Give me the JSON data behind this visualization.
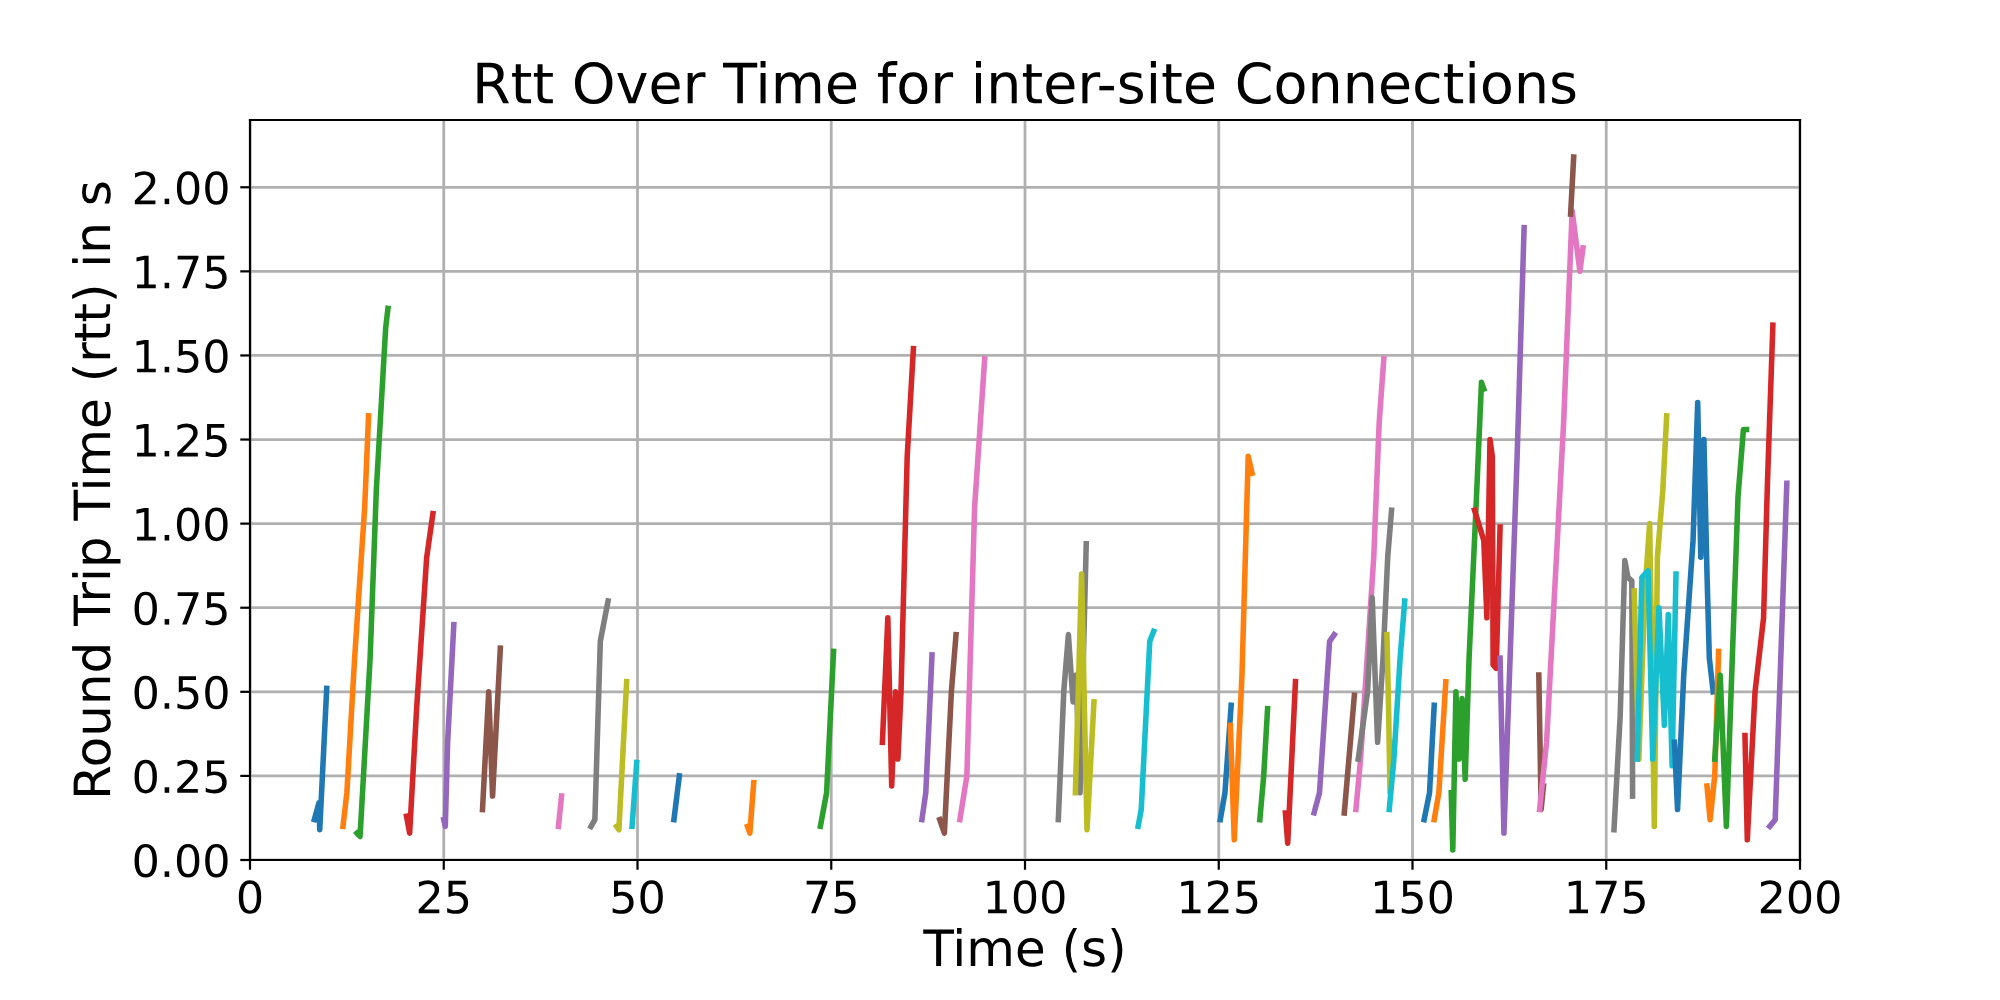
{
  "chart_data": {
    "type": "line",
    "title": "Rtt Over Time for inter-site Connections",
    "xlabel": "Time (s)",
    "ylabel": "Round Trip Time (rtt) in s",
    "xlim": [
      0,
      200
    ],
    "ylim": [
      0,
      2.2
    ],
    "xticks": [
      0,
      25,
      50,
      75,
      100,
      125,
      150,
      175,
      200
    ],
    "yticks": [
      {
        "value": 0,
        "label": "0.00"
      },
      {
        "value": 0.25,
        "label": "0.25"
      },
      {
        "value": 0.5,
        "label": "0.50"
      },
      {
        "value": 0.75,
        "label": "0.75"
      },
      {
        "value": 1,
        "label": "1.00"
      },
      {
        "value": 1.25,
        "label": "1.25"
      },
      {
        "value": 1.5,
        "label": "1.50"
      },
      {
        "value": 1.75,
        "label": "1.75"
      },
      {
        "value": 2,
        "label": "2.00"
      }
    ],
    "grid": true,
    "series": [
      {
        "color": "#1f77b4",
        "x": [
          8.3,
          8.9,
          9.0,
          9.9
        ],
        "values": [
          0.12,
          0.17,
          0.09,
          0.51
        ]
      },
      {
        "color": "#ff7f0e",
        "x": [
          12.0,
          12.5,
          13.5,
          14.8,
          15.3
        ],
        "values": [
          0.1,
          0.2,
          0.6,
          1.05,
          1.32
        ]
      },
      {
        "color": "#2ca02c",
        "x": [
          13.8,
          14.2,
          15.5,
          16.3,
          17.5,
          17.8
        ],
        "values": [
          0.08,
          0.07,
          0.6,
          1.1,
          1.58,
          1.64
        ]
      },
      {
        "color": "#d62728",
        "x": [
          20.2,
          20.6,
          21.5,
          22.8,
          23.6
        ],
        "values": [
          0.13,
          0.08,
          0.45,
          0.9,
          1.03
        ]
      },
      {
        "color": "#9467bd",
        "x": [
          25.0,
          25.2,
          25.5,
          26.3
        ],
        "values": [
          0.12,
          0.1,
          0.35,
          0.7
        ]
      },
      {
        "color": "#8c564b",
        "x": [
          30.0,
          30.8,
          31.3,
          32.3
        ],
        "values": [
          0.15,
          0.5,
          0.19,
          0.63
        ]
      },
      {
        "color": "#e377c2",
        "x": [
          39.8,
          40.2
        ],
        "values": [
          0.1,
          0.19
        ]
      },
      {
        "color": "#7f7f7f",
        "x": [
          44.0,
          44.5,
          45.2,
          46.2
        ],
        "values": [
          0.1,
          0.12,
          0.65,
          0.77
        ]
      },
      {
        "color": "#bcbd22",
        "x": [
          47.3,
          47.6,
          48.6
        ],
        "values": [
          0.1,
          0.09,
          0.53
        ]
      },
      {
        "color": "#17becf",
        "x": [
          49.3,
          49.9
        ],
        "values": [
          0.1,
          0.29
        ]
      },
      {
        "color": "#1f77b4",
        "x": [
          54.7,
          55.4
        ],
        "values": [
          0.12,
          0.25
        ]
      },
      {
        "color": "#ff7f0e",
        "x": [
          64.2,
          64.5,
          65.0
        ],
        "values": [
          0.1,
          0.08,
          0.23
        ]
      },
      {
        "color": "#2ca02c",
        "x": [
          73.6,
          74.4,
          75.3
        ],
        "values": [
          0.1,
          0.2,
          0.62
        ]
      },
      {
        "color": "#d62728",
        "x": [
          81.6,
          82.3,
          82.8,
          83.3,
          83.6,
          84.0,
          84.8,
          85.6
        ],
        "values": [
          0.35,
          0.72,
          0.22,
          0.5,
          0.3,
          0.5,
          1.2,
          1.52
        ]
      },
      {
        "color": "#9467bd",
        "x": [
          86.7,
          87.2,
          87.6,
          88.0
        ],
        "values": [
          0.12,
          0.2,
          0.4,
          0.61
        ]
      },
      {
        "color": "#8c564b",
        "x": [
          89.0,
          89.6,
          90.5,
          91.1
        ],
        "values": [
          0.12,
          0.08,
          0.5,
          0.67
        ]
      },
      {
        "color": "#e377c2",
        "x": [
          91.6,
          92.5,
          93.5,
          94.8
        ],
        "values": [
          0.12,
          0.25,
          1.05,
          1.49
        ]
      },
      {
        "color": "#7f7f7f",
        "x": [
          104.3,
          105.0,
          105.6,
          106.2,
          106.6,
          107.1,
          107.9
        ],
        "values": [
          0.12,
          0.5,
          0.67,
          0.47,
          0.55,
          0.2,
          0.94
        ]
      },
      {
        "color": "#bcbd22",
        "x": [
          106.5,
          107.3,
          108.0,
          108.9
        ],
        "values": [
          0.2,
          0.85,
          0.09,
          0.47
        ]
      },
      {
        "color": "#17becf",
        "x": [
          114.6,
          115.0,
          116.1,
          116.6
        ],
        "values": [
          0.1,
          0.15,
          0.65,
          0.68
        ]
      },
      {
        "color": "#1f77b4",
        "x": [
          125.2,
          125.8,
          126.6
        ],
        "values": [
          0.12,
          0.2,
          0.46
        ]
      },
      {
        "color": "#ff7f0e",
        "x": [
          126.5,
          127.0,
          128.0,
          128.8,
          129.3
        ],
        "values": [
          0.4,
          0.06,
          0.55,
          1.2,
          1.15
        ]
      },
      {
        "color": "#2ca02c",
        "x": [
          130.3,
          130.8,
          131.3
        ],
        "values": [
          0.12,
          0.25,
          0.45
        ]
      },
      {
        "color": "#d62728",
        "x": [
          133.6,
          133.9,
          134.9
        ],
        "values": [
          0.14,
          0.05,
          0.53
        ]
      },
      {
        "color": "#9467bd",
        "x": [
          137.3,
          138.0,
          139.3,
          139.9
        ],
        "values": [
          0.14,
          0.2,
          0.65,
          0.67
        ]
      },
      {
        "color": "#8c564b",
        "x": [
          141.2,
          142.5
        ],
        "values": [
          0.14,
          0.49
        ]
      },
      {
        "color": "#e377c2",
        "x": [
          142.7,
          143.3,
          145.0,
          145.7,
          146.3
        ],
        "values": [
          0.15,
          0.3,
          0.9,
          1.3,
          1.49
        ]
      },
      {
        "color": "#7f7f7f",
        "x": [
          143.0,
          144.2,
          144.8,
          145.5,
          146.2,
          146.8,
          147.3
        ],
        "values": [
          0.3,
          0.5,
          0.78,
          0.35,
          0.6,
          0.9,
          1.04
        ]
      },
      {
        "color": "#bcbd22",
        "x": [
          146.7,
          146.9,
          147.1,
          147.2
        ],
        "values": [
          0.67,
          0.47,
          0.2,
          0.35
        ]
      },
      {
        "color": "#17becf",
        "x": [
          147.0,
          147.6,
          148.4,
          149.0
        ],
        "values": [
          0.15,
          0.3,
          0.6,
          0.77
        ]
      },
      {
        "color": "#1f77b4",
        "x": [
          151.5,
          152.2,
          152.8
        ],
        "values": [
          0.12,
          0.2,
          0.46
        ]
      },
      {
        "color": "#ff7f0e",
        "x": [
          152.8,
          153.4,
          154.3
        ],
        "values": [
          0.12,
          0.2,
          0.53
        ]
      },
      {
        "color": "#2ca02c",
        "x": [
          155.0,
          155.2,
          155.6,
          156.0,
          156.4,
          156.8,
          157.3,
          158.2,
          158.9,
          159.2
        ],
        "values": [
          0.2,
          0.03,
          0.5,
          0.3,
          0.48,
          0.24,
          0.6,
          1.05,
          1.42,
          1.4
        ]
      },
      {
        "color": "#d62728",
        "x": [
          158.0,
          159.2,
          159.6,
          160.0,
          160.3,
          160.4,
          160.8,
          161.3
        ],
        "values": [
          1.04,
          0.95,
          0.72,
          1.25,
          1.2,
          0.58,
          0.57,
          0.99
        ]
      },
      {
        "color": "#9467bd",
        "x": [
          161.3,
          161.8,
          163.5,
          164.4
        ],
        "values": [
          0.6,
          0.08,
          1.2,
          1.88
        ]
      },
      {
        "color": "#8c564b",
        "x": [
          166.3,
          166.6,
          166.9
        ],
        "values": [
          0.55,
          0.15,
          0.22
        ]
      },
      {
        "color": "#e377c2",
        "x": [
          166.4,
          167.3,
          169.5,
          170.6,
          171.6,
          172.0
        ],
        "values": [
          0.15,
          0.35,
          1.3,
          1.93,
          1.75,
          1.82
        ]
      },
      {
        "color": "#8c564b",
        "x": [
          170.4,
          170.8
        ],
        "values": [
          1.92,
          2.09
        ]
      },
      {
        "color": "#7f7f7f",
        "x": [
          176.0,
          176.8,
          177.4,
          177.8,
          178.3,
          178.4
        ],
        "values": [
          0.09,
          0.43,
          0.89,
          0.84,
          0.83,
          0.19
        ]
      },
      {
        "color": "#bcbd22",
        "x": [
          178.6,
          179.2,
          180.0,
          180.6,
          181.2,
          181.6,
          182.3,
          182.8
        ],
        "values": [
          0.8,
          0.3,
          0.8,
          1.0,
          0.1,
          0.9,
          1.1,
          1.32
        ]
      },
      {
        "color": "#17becf",
        "x": [
          179.0,
          179.6,
          180.4,
          181.0,
          181.8,
          182.5,
          183.0,
          183.5,
          184.0
        ],
        "values": [
          0.3,
          0.84,
          0.86,
          0.3,
          0.75,
          0.4,
          0.73,
          0.28,
          0.85
        ]
      },
      {
        "color": "#1f77b4",
        "x": [
          183.8,
          184.2,
          185.0,
          186.2,
          186.8,
          187.2,
          187.6,
          188.0,
          188.3,
          188.8
        ],
        "values": [
          0.35,
          0.15,
          0.55,
          0.95,
          1.36,
          0.9,
          1.25,
          0.85,
          0.6,
          0.5
        ]
      },
      {
        "color": "#ff7f0e",
        "x": [
          188.0,
          188.4,
          189.0,
          189.5
        ],
        "values": [
          0.22,
          0.12,
          0.25,
          0.62
        ]
      },
      {
        "color": "#2ca02c",
        "x": [
          189.0,
          189.7,
          190.5,
          192.0,
          192.7,
          193.1
        ],
        "values": [
          0.3,
          0.55,
          0.1,
          1.08,
          1.28,
          1.28
        ]
      },
      {
        "color": "#d62728",
        "x": [
          192.9,
          193.2,
          194.2,
          195.3,
          195.8,
          196.5
        ],
        "values": [
          0.37,
          0.06,
          0.5,
          0.72,
          1.12,
          1.59
        ]
      },
      {
        "color": "#9467bd",
        "x": [
          196.1,
          196.8,
          198.3
        ],
        "values": [
          0.1,
          0.12,
          1.12
        ]
      }
    ]
  }
}
